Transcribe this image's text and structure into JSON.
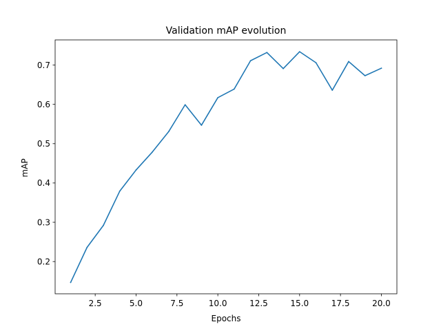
{
  "chart_data": {
    "type": "line",
    "title": "Validation mAP evolution",
    "xlabel": "Epochs",
    "ylabel": "mAP",
    "xlim": [
      0.05,
      20.95
    ],
    "ylim": [
      0.118,
      0.764
    ],
    "xticks": [
      2.5,
      5.0,
      7.5,
      10.0,
      12.5,
      15.0,
      17.5,
      20.0
    ],
    "xtick_labels": [
      "2.5",
      "5.0",
      "7.5",
      "10.0",
      "12.5",
      "15.0",
      "17.5",
      "20.0"
    ],
    "yticks": [
      0.2,
      0.3,
      0.4,
      0.5,
      0.6,
      0.7
    ],
    "ytick_labels": [
      "0.2",
      "0.3",
      "0.4",
      "0.5",
      "0.6",
      "0.7"
    ],
    "grid": false,
    "series": [
      {
        "color": "#1f77b4",
        "x": [
          1,
          2,
          3,
          4,
          5,
          6,
          7,
          8,
          9,
          10,
          11,
          12,
          13,
          14,
          15,
          16,
          17,
          18,
          19,
          20
        ],
        "y": [
          0.147,
          0.236,
          0.292,
          0.379,
          0.433,
          0.479,
          0.531,
          0.599,
          0.547,
          0.617,
          0.639,
          0.711,
          0.732,
          0.691,
          0.734,
          0.706,
          0.636,
          0.709,
          0.673,
          0.692
        ]
      }
    ]
  }
}
